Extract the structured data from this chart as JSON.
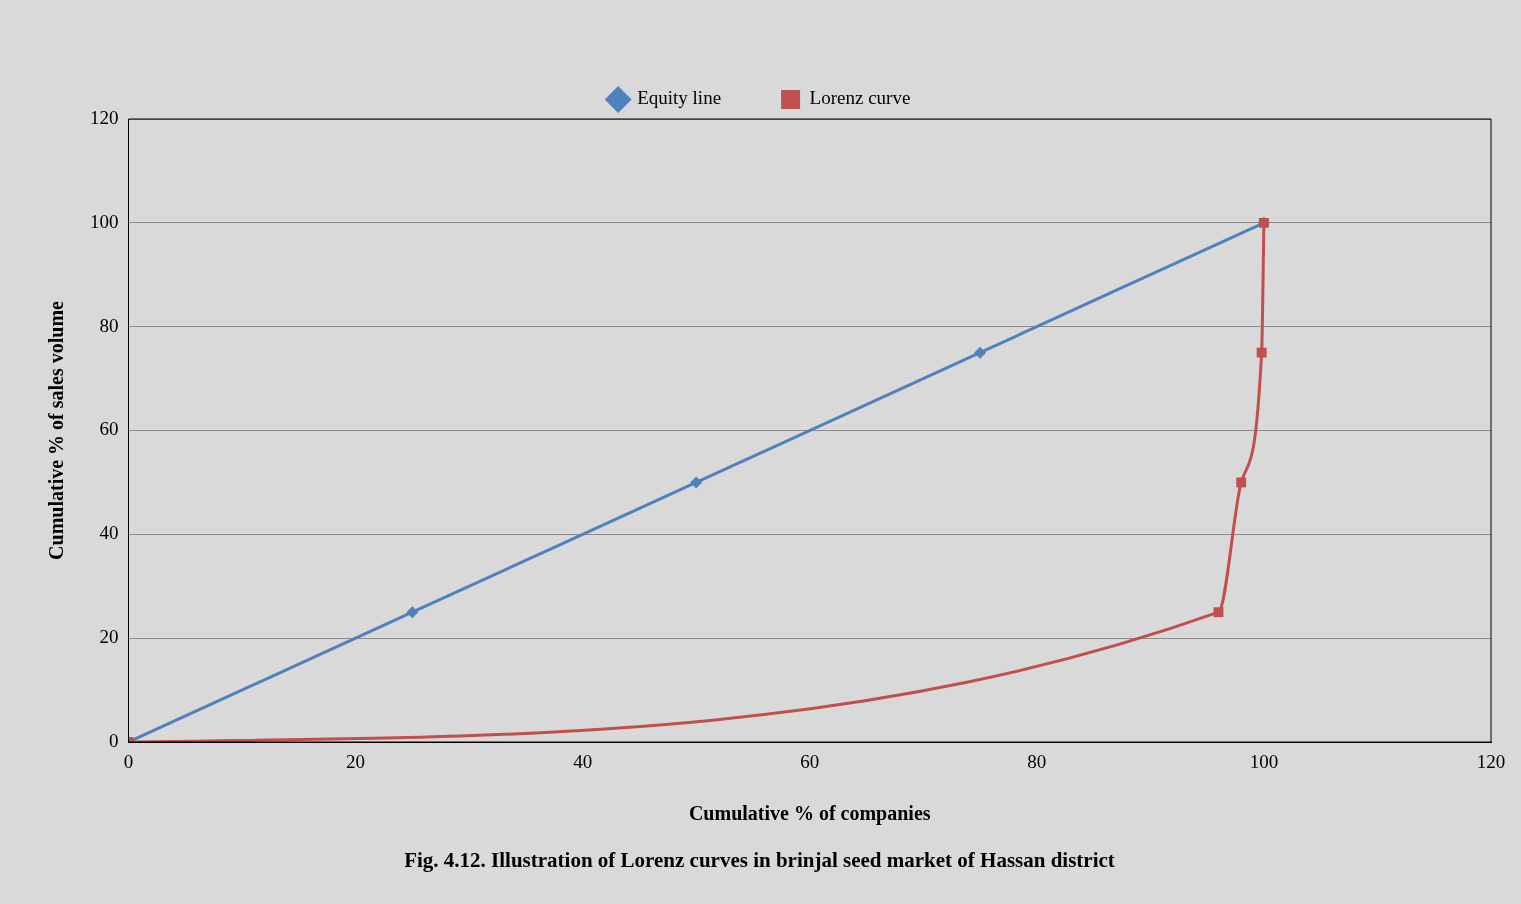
{
  "chart_data": {
    "type": "line",
    "title": "Fig. 4.12. Illustration of Lorenz curves in brinjal seed market of Hassan district",
    "xlabel": "Cumulative % of companies",
    "ylabel": "Cumulative % of sales volume",
    "xlim": [
      0,
      120
    ],
    "xticks": [
      0,
      20,
      40,
      60,
      80,
      100,
      120
    ],
    "ylim": [
      0,
      120
    ],
    "yticks": [
      0,
      20,
      40,
      60,
      80,
      100,
      120
    ],
    "grid": "y",
    "legend": "top",
    "series": [
      {
        "name": "Equity line",
        "color": "#4f81bd",
        "marker": "diamond",
        "x": [
          0,
          25,
          50,
          75,
          100
        ],
        "values": [
          0,
          25,
          50,
          75,
          100
        ]
      },
      {
        "name": "Lorenz curve",
        "color": "#c0504d",
        "marker": "square",
        "x": [
          0,
          96,
          98,
          99.8,
          100
        ],
        "values": [
          0,
          25,
          50,
          75,
          100
        ]
      }
    ]
  }
}
